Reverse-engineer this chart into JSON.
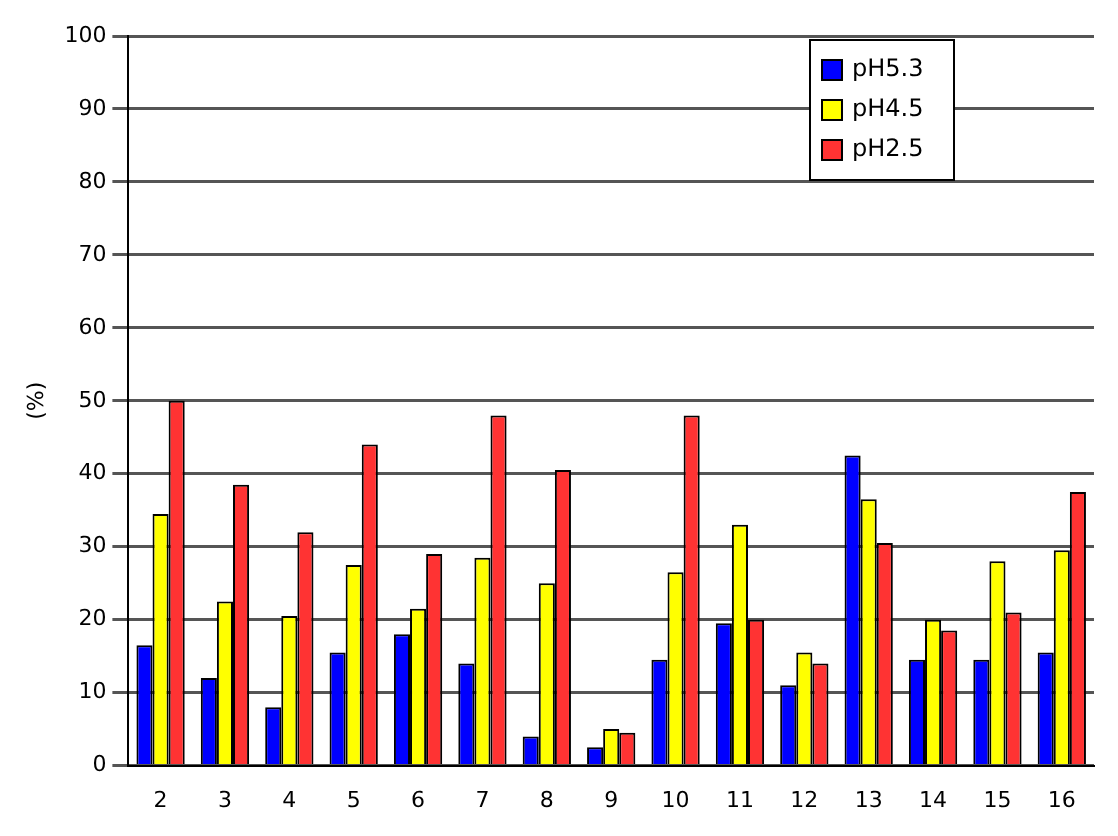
{
  "chart_data": {
    "type": "bar",
    "ylabel": "(%)",
    "categories": [
      "2",
      "3",
      "4",
      "5",
      "6",
      "7",
      "8",
      "9",
      "10",
      "11",
      "12",
      "13",
      "14",
      "15",
      "16"
    ],
    "series": [
      {
        "name": "pH5.3",
        "color": "#0000ff",
        "values": [
          16.5,
          12,
          8,
          15.5,
          18,
          14,
          4,
          2.5,
          14.5,
          19.5,
          11,
          42.5,
          14.5,
          14.5,
          15.5
        ]
      },
      {
        "name": "pH4.5",
        "color": "#ffff00",
        "values": [
          34.5,
          22.5,
          20.5,
          27.5,
          21.5,
          28.5,
          25,
          5,
          26.5,
          33,
          15.5,
          36.5,
          20,
          28,
          29.5
        ]
      },
      {
        "name": "pH2.5",
        "color": "#ff3333",
        "values": [
          50,
          38.5,
          32,
          44,
          29,
          48,
          40.5,
          4.5,
          48,
          20,
          14,
          30.5,
          18.5,
          21,
          37.5
        ]
      }
    ],
    "ylim": [
      0,
      100
    ],
    "yticks": [
      0,
      10,
      20,
      30,
      40,
      50,
      60,
      70,
      80,
      90,
      100
    ],
    "grid": "y",
    "legend": "top right"
  }
}
